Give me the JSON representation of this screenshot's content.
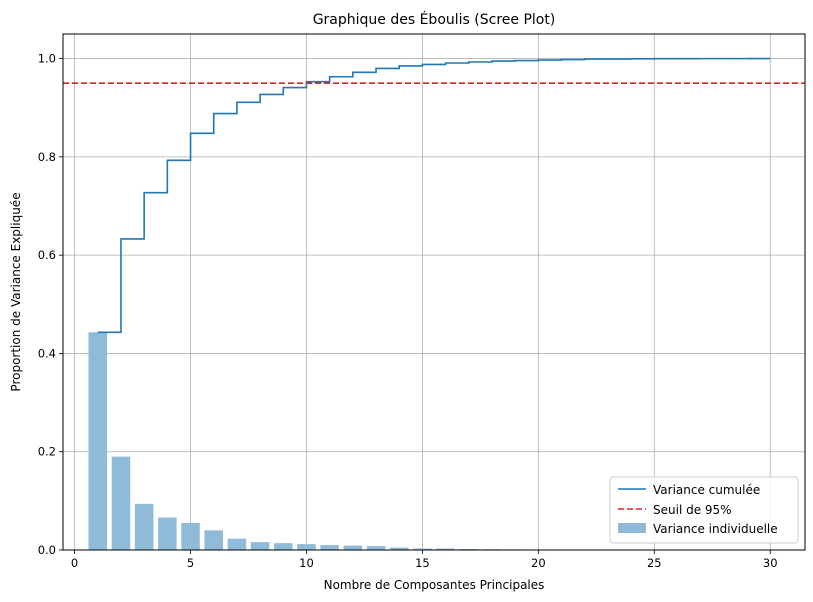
{
  "chart_data": {
    "type": "bar",
    "title": "Graphique des Éboulis (Scree Plot)",
    "xlabel": "Nombre de Composantes Principales",
    "ylabel": "Proportion de Variance Expliquée",
    "xlim": [
      -0.5,
      31.5
    ],
    "ylim": [
      0,
      1.05
    ],
    "xticks": [
      0,
      5,
      10,
      15,
      20,
      25,
      30
    ],
    "yticks": [
      0.0,
      0.2,
      0.4,
      0.6,
      0.8,
      1.0
    ],
    "xtick_labels": [
      "0",
      "5",
      "10",
      "15",
      "20",
      "25",
      "30"
    ],
    "ytick_labels": [
      "0.0",
      "0.2",
      "0.4",
      "0.6",
      "0.8",
      "1.0"
    ],
    "grid": true,
    "legend_position": "lower-right",
    "x": [
      1,
      2,
      3,
      4,
      5,
      6,
      7,
      8,
      9,
      10,
      11,
      12,
      13,
      14,
      15,
      16,
      17,
      18,
      19,
      20,
      21,
      22,
      23,
      24,
      25,
      26,
      27,
      28,
      29,
      30
    ],
    "series": [
      {
        "name": "Variance individuelle",
        "kind": "bar",
        "color": "#8fbbd9",
        "values": [
          0.443,
          0.19,
          0.094,
          0.066,
          0.055,
          0.04,
          0.023,
          0.016,
          0.014,
          0.012,
          0.01,
          0.009,
          0.008,
          0.005,
          0.003,
          0.003,
          0.002,
          0.0015,
          0.0013,
          0.001,
          0.001,
          0.0009,
          0.0008,
          0.0006,
          0.0005,
          0.0003,
          0.0002,
          0.0001,
          0.0001,
          0.0001
        ]
      },
      {
        "name": "Variance cumulée",
        "kind": "step",
        "color": "#1f77b4",
        "values": [
          0.443,
          0.633,
          0.727,
          0.793,
          0.848,
          0.888,
          0.911,
          0.927,
          0.941,
          0.953,
          0.963,
          0.972,
          0.98,
          0.985,
          0.988,
          0.991,
          0.993,
          0.995,
          0.996,
          0.997,
          0.998,
          0.999,
          0.999,
          0.9995,
          0.9997,
          0.9998,
          0.9999,
          0.9999,
          1.0,
          1.0
        ]
      },
      {
        "name": "Seuil de 95%",
        "kind": "hline",
        "color": "#d62728",
        "value": 0.95
      }
    ]
  }
}
